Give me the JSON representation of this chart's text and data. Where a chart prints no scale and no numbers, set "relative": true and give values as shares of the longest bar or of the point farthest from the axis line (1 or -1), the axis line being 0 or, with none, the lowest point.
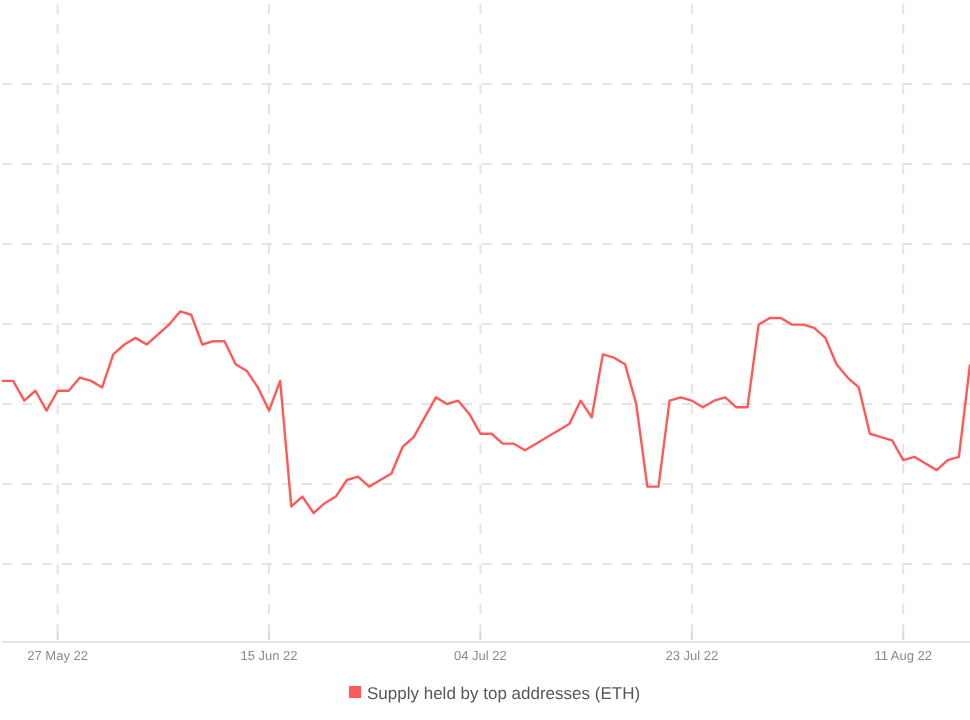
{
  "chart_data": {
    "type": "line",
    "relative": true,
    "grid": true,
    "legend": "bottom",
    "marker": "none",
    "line_style": "solid",
    "x": [
      "2022-05-22",
      "2022-05-23",
      "2022-05-24",
      "2022-05-25",
      "2022-05-26",
      "2022-05-27",
      "2022-05-28",
      "2022-05-29",
      "2022-05-30",
      "2022-05-31",
      "2022-06-01",
      "2022-06-02",
      "2022-06-03",
      "2022-06-04",
      "2022-06-05",
      "2022-06-06",
      "2022-06-07",
      "2022-06-08",
      "2022-06-09",
      "2022-06-10",
      "2022-06-11",
      "2022-06-12",
      "2022-06-13",
      "2022-06-14",
      "2022-06-15",
      "2022-06-16",
      "2022-06-17",
      "2022-06-18",
      "2022-06-19",
      "2022-06-20",
      "2022-06-21",
      "2022-06-22",
      "2022-06-23",
      "2022-06-24",
      "2022-06-25",
      "2022-06-26",
      "2022-06-27",
      "2022-06-28",
      "2022-06-29",
      "2022-06-30",
      "2022-07-01",
      "2022-07-02",
      "2022-07-03",
      "2022-07-04",
      "2022-07-05",
      "2022-07-06",
      "2022-07-07",
      "2022-07-08",
      "2022-07-09",
      "2022-07-10",
      "2022-07-11",
      "2022-07-12",
      "2022-07-13",
      "2022-07-14",
      "2022-07-15",
      "2022-07-16",
      "2022-07-17",
      "2022-07-18",
      "2022-07-19",
      "2022-07-20",
      "2022-07-21",
      "2022-07-22",
      "2022-07-23",
      "2022-07-24",
      "2022-07-25",
      "2022-07-26",
      "2022-07-27",
      "2022-07-28",
      "2022-07-29",
      "2022-07-30",
      "2022-07-31",
      "2022-08-01",
      "2022-08-02",
      "2022-08-03",
      "2022-08-04",
      "2022-08-05",
      "2022-08-06",
      "2022-08-07",
      "2022-08-08",
      "2022-08-09",
      "2022-08-10",
      "2022-08-11",
      "2022-08-12",
      "2022-08-13",
      "2022-08-14",
      "2022-08-15",
      "2022-08-16",
      "2022-08-17"
    ],
    "xlim": [
      "2022-05-22",
      "2022-08-17"
    ],
    "xticks": [
      {
        "value": "2022-05-27",
        "label": "27 May 22"
      },
      {
        "value": "2022-06-15",
        "label": "15 Jun 22"
      },
      {
        "value": "2022-07-04",
        "label": "04 Jul 22"
      },
      {
        "value": "2022-07-23",
        "label": "23 Jul 22"
      },
      {
        "value": "2022-08-11",
        "label": "11 Aug 22"
      }
    ],
    "series": [
      {
        "name": "Supply held by top addresses (ETH)",
        "color": "#ff5a5a",
        "values": [
          0.79,
          0.79,
          0.73,
          0.76,
          0.7,
          0.76,
          0.76,
          0.8,
          0.79,
          0.77,
          0.87,
          0.9,
          0.92,
          0.9,
          0.93,
          0.96,
          1.0,
          0.99,
          0.9,
          0.91,
          0.91,
          0.84,
          0.82,
          0.77,
          0.7,
          0.79,
          0.41,
          0.44,
          0.39,
          0.42,
          0.44,
          0.49,
          0.5,
          0.47,
          0.49,
          0.51,
          0.59,
          0.62,
          0.68,
          0.74,
          0.72,
          0.73,
          0.69,
          0.63,
          0.63,
          0.6,
          0.6,
          0.58,
          0.6,
          0.62,
          0.64,
          0.66,
          0.73,
          0.68,
          0.87,
          0.86,
          0.84,
          0.72,
          0.47,
          0.47,
          0.73,
          0.74,
          0.73,
          0.71,
          0.73,
          0.74,
          0.71,
          0.71,
          0.96,
          0.98,
          0.98,
          0.96,
          0.96,
          0.95,
          0.92,
          0.84,
          0.8,
          0.77,
          0.63,
          0.62,
          0.61,
          0.55,
          0.56,
          0.54,
          0.52,
          0.55,
          0.56,
          0.84
        ]
      }
    ]
  }
}
